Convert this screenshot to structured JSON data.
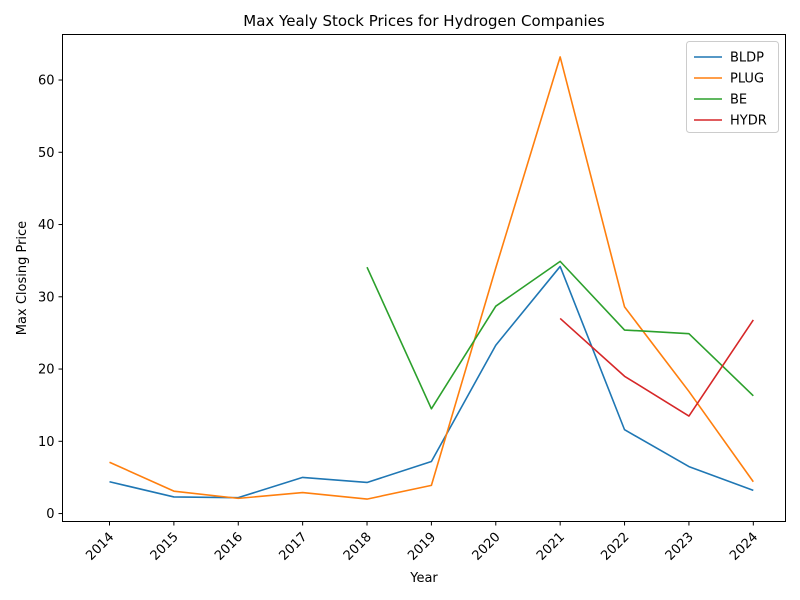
{
  "chart_data": {
    "type": "line",
    "title": "Max Yealy Stock Prices for Hydrogen Companies",
    "xlabel": "Year",
    "ylabel": "Max Closing Price",
    "x": [
      "2014",
      "2015",
      "2016",
      "2017",
      "2018",
      "2019",
      "2020",
      "2021",
      "2022",
      "2023",
      "2024"
    ],
    "xlim": [
      2013.27,
      2024.5
    ],
    "ylim": [
      -1.1,
      66.3
    ],
    "yticks": [
      0,
      10,
      20,
      30,
      40,
      50,
      60
    ],
    "grid": false,
    "legend_position": "top-right",
    "series": [
      {
        "name": "BLDP",
        "color": "#1f77b4",
        "values": [
          4.4,
          2.3,
          2.2,
          5.0,
          4.3,
          7.2,
          23.3,
          34.2,
          11.6,
          6.5,
          3.2
        ]
      },
      {
        "name": "PLUG",
        "color": "#ff7f0e",
        "values": [
          7.1,
          3.1,
          2.1,
          2.9,
          2.0,
          3.9,
          34.0,
          63.2,
          28.6,
          16.9,
          4.4
        ]
      },
      {
        "name": "BE",
        "color": "#2ca02c",
        "values": [
          null,
          null,
          null,
          null,
          34.1,
          14.5,
          28.7,
          34.9,
          25.4,
          24.9,
          16.3
        ]
      },
      {
        "name": "HYDR",
        "color": "#d62728",
        "values": [
          null,
          null,
          null,
          null,
          null,
          null,
          null,
          27.0,
          19.0,
          13.5,
          26.8
        ]
      }
    ]
  }
}
